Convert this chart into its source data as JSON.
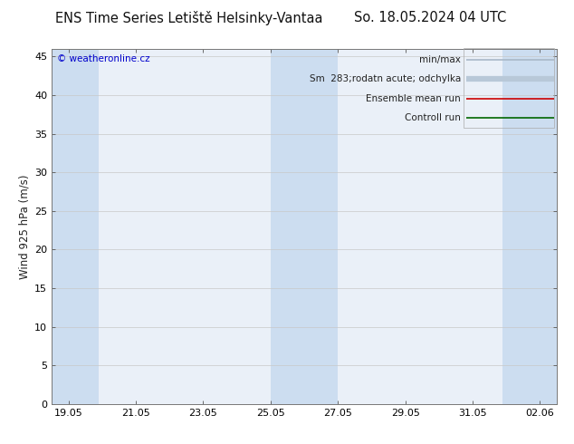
{
  "title_left": "ENS Time Series Letiště Helsinky-Vantaa",
  "title_right": "So. 18.05.2024 04 UTC",
  "ylabel": "Wind 925 hPa (m/s)",
  "watermark": "© weatheronline.cz",
  "watermark_color": "#0000cc",
  "ylim": [
    0,
    46
  ],
  "yticks": [
    0,
    5,
    10,
    15,
    20,
    25,
    30,
    35,
    40,
    45
  ],
  "xtick_labels": [
    "19.05",
    "21.05",
    "23.05",
    "25.05",
    "27.05",
    "29.05",
    "31.05",
    "02.06"
  ],
  "xtick_positions": [
    0,
    2,
    4,
    6,
    8,
    10,
    12,
    14
  ],
  "xlim": [
    -0.5,
    14.5
  ],
  "shade_bands": [
    {
      "start": -0.5,
      "end": 0.9
    },
    {
      "start": 6.0,
      "end": 8.0
    },
    {
      "start": 12.9,
      "end": 14.5
    }
  ],
  "shade_color": "#ccddf0",
  "bg_color": "#ffffff",
  "plot_bg_color": "#eaf0f8",
  "grid_color": "#c8c8c8",
  "legend_entries": [
    {
      "label": "min/max",
      "color": "#a8b8c8",
      "lw": 1.2
    },
    {
      "label": "Sm  283;rodatn acute; odchylka",
      "color": "#b8c8d8",
      "lw": 4.5
    },
    {
      "label": "Ensemble mean run",
      "color": "#cc0000",
      "lw": 1.2
    },
    {
      "label": "Controll run",
      "color": "#006600",
      "lw": 1.2
    }
  ],
  "title_fontsize": 10.5,
  "axis_label_fontsize": 8.5,
  "tick_fontsize": 8,
  "legend_fontsize": 7.5
}
